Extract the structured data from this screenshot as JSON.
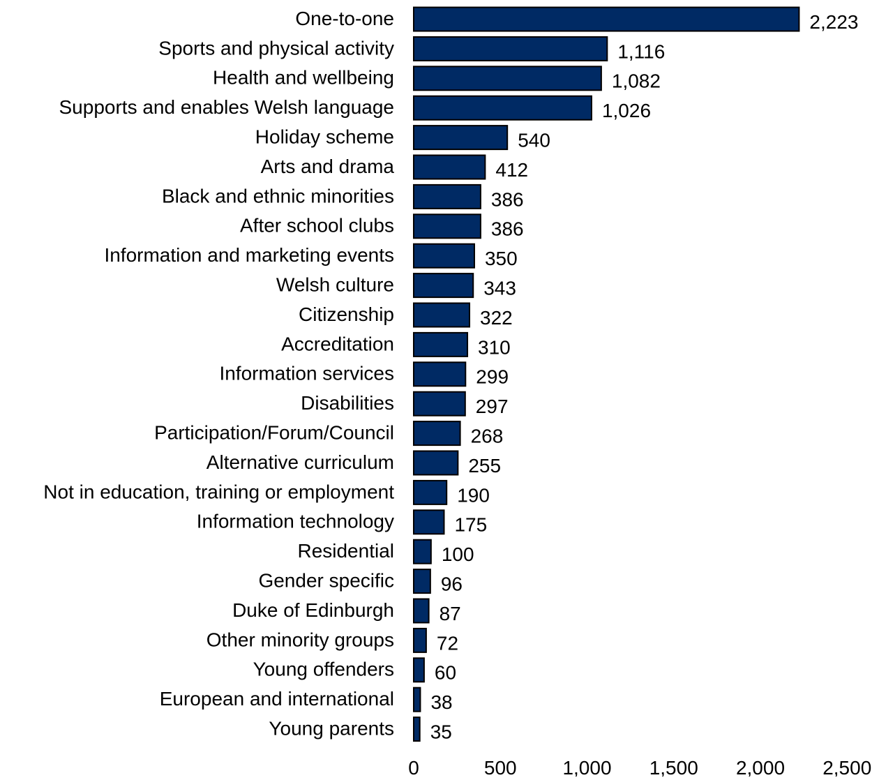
{
  "chart_data": {
    "type": "bar",
    "orientation": "horizontal",
    "title": "",
    "xlabel": "",
    "ylabel": "",
    "xlim": [
      0,
      2500
    ],
    "xticks": [
      0,
      500,
      1000,
      1500,
      2000,
      2500
    ],
    "xtick_labels": [
      "0",
      "500",
      "1,000",
      "1,500",
      "2,000",
      "2,500"
    ],
    "grid": false,
    "legend": "none",
    "bar_color": "#002a64",
    "bar_outline_color": "#000000",
    "categories": [
      "One-to-one",
      "Sports and physical activity",
      "Health and wellbeing",
      "Supports and enables Welsh language",
      "Holiday scheme",
      "Arts and drama",
      "Black and ethnic minorities",
      "After school clubs",
      "Information and marketing events",
      "Welsh culture",
      "Citizenship",
      "Accreditation",
      "Information services",
      "Disabilities",
      "Participation/Forum/Council",
      "Alternative curriculum",
      "Not in education, training or employment",
      "Information technology",
      "Residential",
      "Gender specific",
      "Duke of Edinburgh",
      "Other minority groups",
      "Young offenders",
      "European and international",
      "Young parents"
    ],
    "values": [
      2223,
      1116,
      1082,
      1026,
      540,
      412,
      386,
      386,
      350,
      343,
      322,
      310,
      299,
      297,
      268,
      255,
      190,
      175,
      100,
      96,
      87,
      72,
      60,
      38,
      35
    ],
    "value_labels": [
      "2,223",
      "1,116",
      "1,082",
      "1,026",
      "540",
      "412",
      "386",
      "386",
      "350",
      "343",
      "322",
      "310",
      "299",
      "297",
      "268",
      "255",
      "190",
      "175",
      "100",
      "96",
      "87",
      "72",
      "60",
      "38",
      "35"
    ]
  }
}
